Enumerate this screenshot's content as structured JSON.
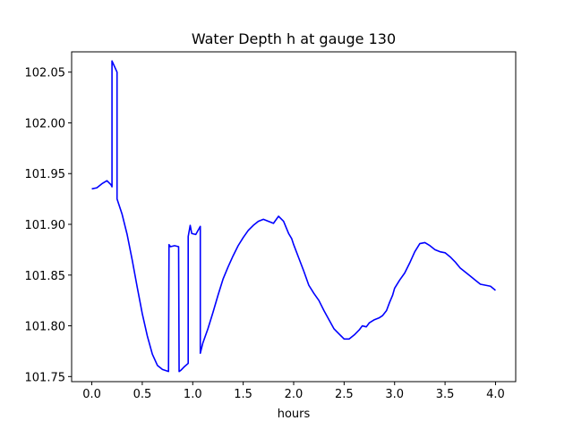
{
  "chart_data": {
    "type": "line",
    "title": "Water Depth h at gauge 130",
    "xlabel": "hours",
    "ylabel": "",
    "xlim": [
      -0.2,
      4.2
    ],
    "ylim": [
      101.745,
      102.07
    ],
    "xticks": [
      0.0,
      0.5,
      1.0,
      1.5,
      2.0,
      2.5,
      3.0,
      3.5,
      4.0
    ],
    "xtick_labels": [
      "0.0",
      "0.5",
      "1.0",
      "1.5",
      "2.0",
      "2.5",
      "3.0",
      "3.5",
      "4.0"
    ],
    "yticks": [
      101.75,
      101.8,
      101.85,
      101.9,
      101.95,
      102.0,
      102.05
    ],
    "ytick_labels": [
      "101.75",
      "101.80",
      "101.85",
      "101.90",
      "101.95",
      "102.00",
      "102.05"
    ],
    "grid": false,
    "series": [
      {
        "color": "#0000ff",
        "x": [
          0.0,
          0.05,
          0.1,
          0.15,
          0.19,
          0.2,
          0.2,
          0.25,
          0.25,
          0.3,
          0.35,
          0.4,
          0.45,
          0.5,
          0.55,
          0.6,
          0.65,
          0.7,
          0.73,
          0.76,
          0.765,
          0.78,
          0.82,
          0.86,
          0.865,
          0.88,
          0.92,
          0.955,
          0.955,
          0.975,
          0.99,
          1.03,
          1.075,
          1.075,
          1.085,
          1.1,
          1.15,
          1.2,
          1.25,
          1.3,
          1.35,
          1.4,
          1.45,
          1.5,
          1.55,
          1.6,
          1.65,
          1.7,
          1.75,
          1.8,
          1.85,
          1.9,
          1.95,
          1.98,
          2.0,
          2.05,
          2.1,
          2.15,
          2.2,
          2.25,
          2.3,
          2.35,
          2.4,
          2.45,
          2.5,
          2.55,
          2.6,
          2.65,
          2.68,
          2.72,
          2.75,
          2.8,
          2.85,
          2.88,
          2.92,
          2.95,
          2.98,
          3.0,
          3.05,
          3.1,
          3.15,
          3.2,
          3.25,
          3.3,
          3.35,
          3.4,
          3.45,
          3.5,
          3.55,
          3.6,
          3.65,
          3.7,
          3.75,
          3.8,
          3.85,
          3.9,
          3.95,
          4.0
        ],
        "y": [
          101.935,
          101.936,
          101.94,
          101.943,
          101.939,
          101.937,
          102.061,
          102.05,
          101.925,
          101.91,
          101.89,
          101.865,
          101.838,
          101.812,
          101.79,
          101.772,
          101.761,
          101.757,
          101.756,
          101.755,
          101.88,
          101.878,
          101.879,
          101.878,
          101.755,
          101.756,
          101.76,
          101.763,
          101.888,
          101.899,
          101.891,
          101.89,
          101.898,
          101.773,
          101.777,
          101.783,
          101.797,
          101.813,
          101.83,
          101.846,
          101.858,
          101.869,
          101.879,
          101.887,
          101.894,
          101.899,
          101.903,
          101.905,
          101.903,
          101.901,
          101.908,
          101.903,
          101.891,
          101.886,
          101.88,
          101.867,
          101.854,
          101.84,
          101.832,
          101.825,
          101.815,
          101.806,
          101.797,
          101.792,
          101.787,
          101.787,
          101.791,
          101.796,
          101.8,
          101.799,
          101.803,
          101.806,
          101.808,
          101.81,
          101.815,
          101.823,
          101.83,
          101.837,
          101.845,
          101.852,
          101.862,
          101.873,
          101.881,
          101.882,
          101.879,
          101.875,
          101.873,
          101.872,
          101.868,
          101.863,
          101.857,
          101.853,
          101.849,
          101.845,
          101.841,
          101.84,
          101.839,
          101.835
        ]
      }
    ]
  }
}
